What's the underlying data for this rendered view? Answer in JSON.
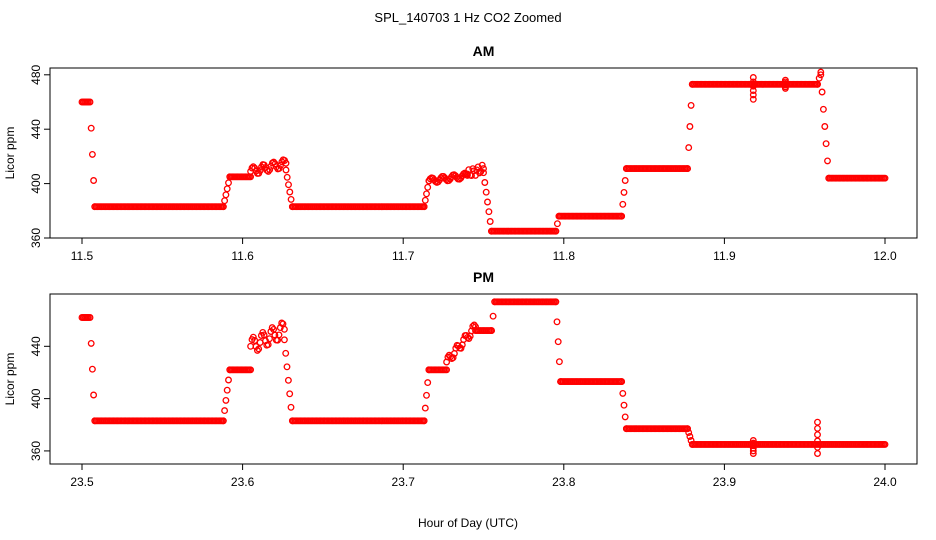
{
  "figure": {
    "title": "SPL_140703  1 Hz CO2 Zoomed",
    "xlabel": "Hour of Day (UTC)"
  },
  "colors": {
    "points": "#ff0000",
    "axis": "#000000"
  },
  "chart_data": [
    {
      "type": "scatter",
      "title": "AM",
      "xlabel": "Hour of Day (UTC)",
      "ylabel": "Licor ppm",
      "xlim": [
        11.5,
        12.0
      ],
      "ylim": [
        360,
        485
      ],
      "xticks": [
        "11.5",
        "11.6",
        "11.7",
        "11.8",
        "11.9",
        "12.0"
      ],
      "yticks": [
        "360",
        "400",
        "440",
        "480"
      ],
      "marker": "open-circle",
      "segments": [
        {
          "x": [
            11.5,
            11.504
          ],
          "y": 460
        },
        {
          "x": [
            11.505,
            11.508
          ],
          "y": [
            460,
            383
          ]
        },
        {
          "x": [
            11.508,
            11.588
          ],
          "y": 383
        },
        {
          "x": [
            11.588,
            11.592
          ],
          "y": [
            383,
            405
          ]
        },
        {
          "x": [
            11.592,
            11.605
          ],
          "y": 405
        },
        {
          "x": [
            11.605,
            11.627
          ],
          "y": [
            409,
            415
          ],
          "wiggle": 3
        },
        {
          "x": [
            11.627,
            11.631
          ],
          "y": [
            410,
            383
          ]
        },
        {
          "x": [
            11.631,
            11.713
          ],
          "y": 383
        },
        {
          "x": [
            11.713,
            11.716
          ],
          "y": [
            383,
            402
          ]
        },
        {
          "x": [
            11.716,
            11.74
          ],
          "y": [
            402,
            406
          ],
          "wiggle": 2
        },
        {
          "x": [
            11.74,
            11.75
          ],
          "y": [
            407,
            411
          ],
          "wiggle": 3
        },
        {
          "x": [
            11.75,
            11.755
          ],
          "y": [
            408,
            365
          ]
        },
        {
          "x": [
            11.755,
            11.795
          ],
          "y": 365
        },
        {
          "x": [
            11.795,
            11.797
          ],
          "y": [
            365,
            376
          ]
        },
        {
          "x": [
            11.797,
            11.836
          ],
          "y": 376
        },
        {
          "x": [
            11.836,
            11.839
          ],
          "y": [
            376,
            411
          ]
        },
        {
          "x": [
            11.839,
            11.877
          ],
          "y": 411
        },
        {
          "x": [
            11.877,
            11.88
          ],
          "y": [
            411,
            473
          ]
        },
        {
          "x": [
            11.88,
            11.958
          ],
          "y": 473
        },
        {
          "x": [
            11.958,
            11.96
          ],
          "y": [
            473,
            482
          ]
        },
        {
          "x": [
            11.96,
            11.965
          ],
          "y": [
            480,
            404
          ]
        },
        {
          "x": [
            11.965,
            12.0
          ],
          "y": 404
        }
      ],
      "spikes": [
        {
          "x": 11.918,
          "y": [
            462,
            478
          ]
        },
        {
          "x": 11.938,
          "y": [
            470,
            476
          ]
        }
      ]
    },
    {
      "type": "scatter",
      "title": "PM",
      "xlabel": "Hour of Day (UTC)",
      "ylabel": "Licor ppm",
      "xlim": [
        23.5,
        24.0
      ],
      "ylim": [
        350,
        480
      ],
      "xticks": [
        "23.5",
        "23.6",
        "23.7",
        "23.8",
        "23.9",
        "24.0"
      ],
      "yticks": [
        "360",
        "400",
        "440"
      ],
      "marker": "open-circle",
      "segments": [
        {
          "x": [
            23.5,
            23.504
          ],
          "y": 462
        },
        {
          "x": [
            23.505,
            23.508
          ],
          "y": [
            462,
            383
          ]
        },
        {
          "x": [
            23.508,
            23.588
          ],
          "y": 383
        },
        {
          "x": [
            23.588,
            23.592
          ],
          "y": [
            383,
            422
          ]
        },
        {
          "x": [
            23.592,
            23.605
          ],
          "y": 422
        },
        {
          "x": [
            23.605,
            23.626
          ],
          "y": [
            440,
            453
          ],
          "wiggle": 6
        },
        {
          "x": [
            23.626,
            23.631
          ],
          "y": [
            445,
            383
          ]
        },
        {
          "x": [
            23.631,
            23.713
          ],
          "y": 383
        },
        {
          "x": [
            23.713,
            23.716
          ],
          "y": [
            383,
            422
          ]
        },
        {
          "x": [
            23.716,
            23.727
          ],
          "y": 422
        },
        {
          "x": [
            23.727,
            23.745
          ],
          "y": [
            428,
            455
          ],
          "wiggle": 3
        },
        {
          "x": [
            23.745,
            23.755
          ],
          "y": [
            452,
            452
          ]
        },
        {
          "x": [
            23.755,
            23.757
          ],
          "y": [
            452,
            474
          ]
        },
        {
          "x": [
            23.757,
            23.795
          ],
          "y": 474
        },
        {
          "x": [
            23.795,
            23.798
          ],
          "y": [
            474,
            413
          ]
        },
        {
          "x": [
            23.798,
            23.836
          ],
          "y": 413
        },
        {
          "x": [
            23.836,
            23.839
          ],
          "y": [
            413,
            377
          ]
        },
        {
          "x": [
            23.839,
            23.877
          ],
          "y": 377
        },
        {
          "x": [
            23.877,
            23.88
          ],
          "y": [
            377,
            365
          ]
        },
        {
          "x": [
            23.88,
            24.0
          ],
          "y": 365
        }
      ],
      "spikes": [
        {
          "x": 23.918,
          "y": [
            358,
            368
          ]
        },
        {
          "x": 23.958,
          "y": [
            358,
            382
          ]
        }
      ]
    }
  ]
}
